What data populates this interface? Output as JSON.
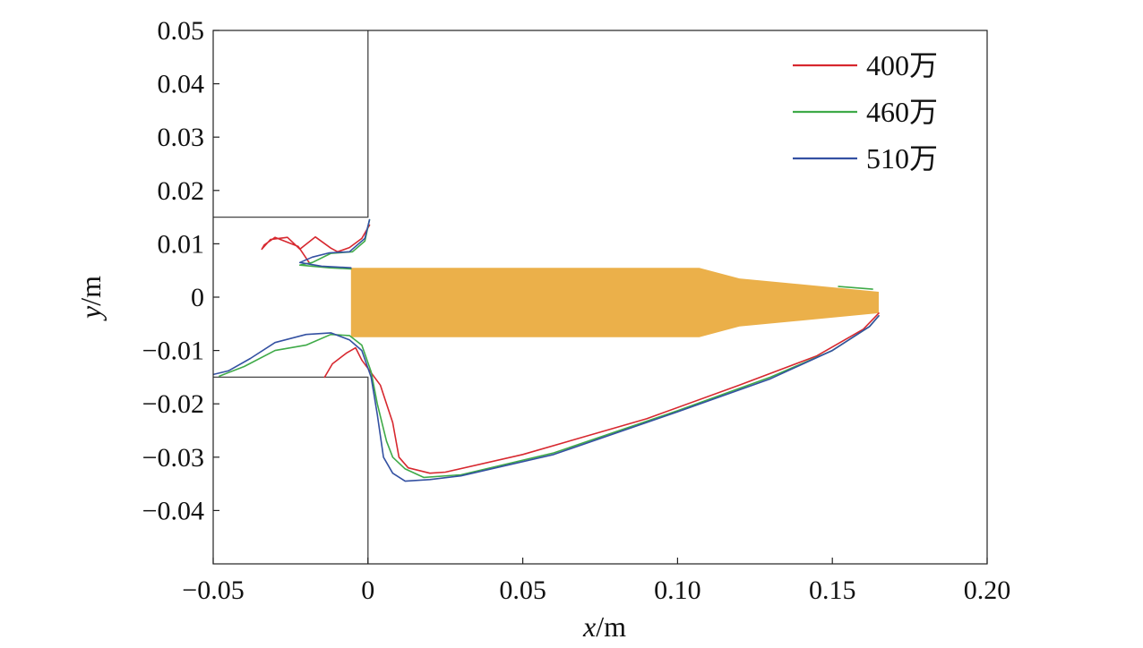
{
  "chart_data": {
    "type": "line",
    "xlabel": "x/m",
    "ylabel": "y/m",
    "xlabel_parts": {
      "var": "x",
      "unit": "/m"
    },
    "ylabel_parts": {
      "var": "y",
      "unit": "/m"
    },
    "xlim": [
      -0.05,
      0.2
    ],
    "ylim": [
      -0.05,
      0.05
    ],
    "grid": false,
    "legend_position": "top-right",
    "xticks": [
      {
        "value": -0.05,
        "label": "−0.05"
      },
      {
        "value": 0,
        "label": "0"
      },
      {
        "value": 0.05,
        "label": "0.05"
      },
      {
        "value": 0.1,
        "label": "0.10"
      },
      {
        "value": 0.15,
        "label": "0.15"
      },
      {
        "value": 0.2,
        "label": "0.20"
      }
    ],
    "yticks": [
      {
        "value": 0.05,
        "label": "0.05"
      },
      {
        "value": 0.04,
        "label": "0.04"
      },
      {
        "value": 0.03,
        "label": "0.03"
      },
      {
        "value": 0.02,
        "label": "0.02"
      },
      {
        "value": 0.01,
        "label": "0.01"
      },
      {
        "value": 0,
        "label": "0"
      },
      {
        "value": -0.01,
        "label": "−0.01"
      },
      {
        "value": -0.02,
        "label": "−0.02"
      },
      {
        "value": -0.03,
        "label": "−0.03"
      },
      {
        "value": -0.04,
        "label": "−0.04"
      }
    ],
    "geometry": {
      "color": "#444444",
      "upper_wall": [
        [
          -0.05,
          0.015
        ],
        [
          0,
          0.015
        ],
        [
          0,
          0.05
        ]
      ],
      "lower_wall": [
        [
          -0.05,
          -0.015
        ],
        [
          0,
          -0.015
        ],
        [
          0,
          -0.05
        ]
      ]
    },
    "body": {
      "color": "#EBB04A",
      "outline": [
        [
          -0.0055,
          0.0055
        ],
        [
          0.107,
          0.0055
        ],
        [
          0.12,
          0.0035
        ],
        [
          0.165,
          0.001
        ],
        [
          0.165,
          -0.003
        ],
        [
          0.12,
          -0.0055
        ],
        [
          0.107,
          -0.0075
        ],
        [
          -0.0055,
          -0.0075
        ]
      ]
    },
    "series": [
      {
        "name": "400万",
        "color": "#D7282F",
        "segments": [
          [
            [
              0.0005,
              0.0135
            ],
            [
              -0.002,
              0.011
            ],
            [
              -0.006,
              0.0093
            ],
            [
              -0.0098,
              0.0085
            ],
            [
              -0.012,
              0.0092
            ],
            [
              -0.017,
              0.0113
            ],
            [
              -0.022,
              0.009
            ],
            [
              -0.026,
              0.0112
            ],
            [
              -0.0315,
              0.0108
            ],
            [
              -0.0343,
              0.009
            ],
            [
              -0.0335,
              0.0098
            ],
            [
              -0.03,
              0.0112
            ],
            [
              -0.0225,
              0.0095
            ],
            [
              -0.019,
              0.0065
            ]
          ],
          [
            [
              -0.014,
              -0.015
            ],
            [
              -0.0115,
              -0.0125
            ],
            [
              -0.007,
              -0.0105
            ],
            [
              -0.004,
              -0.0095
            ],
            [
              -0.002,
              -0.0118
            ],
            [
              0.004,
              -0.0165
            ],
            [
              0.006,
              -0.02
            ],
            [
              0.008,
              -0.0235
            ],
            [
              0.01,
              -0.03
            ],
            [
              0.013,
              -0.032
            ],
            [
              0.02,
              -0.033
            ],
            [
              0.025,
              -0.0328
            ],
            [
              0.05,
              -0.0295
            ],
            [
              0.09,
              -0.0228
            ],
            [
              0.12,
              -0.0165
            ],
            [
              0.145,
              -0.011
            ],
            [
              0.16,
              -0.006
            ],
            [
              0.165,
              -0.003
            ]
          ]
        ]
      },
      {
        "name": "460万",
        "color": "#3FAA48",
        "segments": [
          [
            [
              0.0005,
              0.0145
            ],
            [
              -0.001,
              0.0105
            ],
            [
              -0.005,
              0.0085
            ],
            [
              -0.012,
              0.0082
            ],
            [
              -0.018,
              0.0065
            ],
            [
              -0.022,
              0.006
            ],
            [
              -0.0125,
              0.0055
            ],
            [
              -0.0055,
              0.0053
            ]
          ],
          [
            [
              -0.048,
              -0.0148
            ],
            [
              -0.04,
              -0.013
            ],
            [
              -0.03,
              -0.01
            ],
            [
              -0.02,
              -0.009
            ],
            [
              -0.012,
              -0.007
            ],
            [
              -0.006,
              -0.0072
            ],
            [
              -0.002,
              -0.009
            ],
            [
              0.001,
              -0.014
            ],
            [
              0.003,
              -0.02
            ],
            [
              0.006,
              -0.027
            ],
            [
              0.008,
              -0.03
            ],
            [
              0.012,
              -0.0322
            ],
            [
              0.018,
              -0.0338
            ],
            [
              0.03,
              -0.0333
            ],
            [
              0.06,
              -0.0292
            ],
            [
              0.1,
              -0.0213
            ],
            [
              0.13,
              -0.015
            ],
            [
              0.15,
              -0.01
            ],
            [
              0.162,
              -0.0055
            ],
            [
              0.165,
              -0.0035
            ]
          ],
          [
            [
              0.152,
              0.002
            ],
            [
              0.163,
              0.0015
            ]
          ]
        ]
      },
      {
        "name": "510万",
        "color": "#3451A2",
        "segments": [
          [
            [
              0.0005,
              0.0145
            ],
            [
              -0.001,
              0.011
            ],
            [
              -0.006,
              0.0085
            ],
            [
              -0.0125,
              0.0083
            ],
            [
              -0.018,
              0.0075
            ],
            [
              -0.022,
              0.0065
            ],
            [
              -0.015,
              0.0058
            ],
            [
              -0.0055,
              0.0055
            ]
          ],
          [
            [
              -0.05,
              -0.0145
            ],
            [
              -0.045,
              -0.0138
            ],
            [
              -0.038,
              -0.0115
            ],
            [
              -0.03,
              -0.0085
            ],
            [
              -0.02,
              -0.007
            ],
            [
              -0.012,
              -0.0067
            ],
            [
              -0.006,
              -0.008
            ],
            [
              -0.002,
              -0.01
            ],
            [
              0.001,
              -0.015
            ],
            [
              0.003,
              -0.022
            ],
            [
              0.005,
              -0.03
            ],
            [
              0.008,
              -0.033
            ],
            [
              0.012,
              -0.0345
            ],
            [
              0.02,
              -0.0342
            ],
            [
              0.03,
              -0.0335
            ],
            [
              0.06,
              -0.0295
            ],
            [
              0.1,
              -0.0215
            ],
            [
              0.13,
              -0.0153
            ],
            [
              0.15,
              -0.01
            ],
            [
              0.162,
              -0.0055
            ],
            [
              0.165,
              -0.0035
            ]
          ]
        ]
      }
    ]
  }
}
